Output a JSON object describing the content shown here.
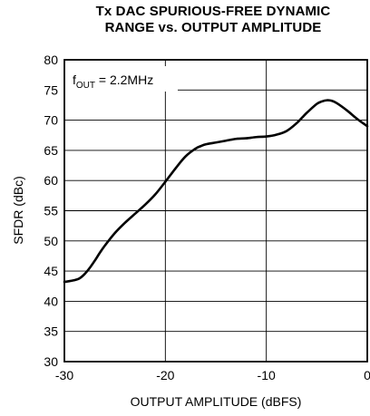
{
  "chart_data": {
    "type": "line",
    "title_line1": "Tx DAC SPURIOUS-FREE DYNAMIC",
    "title_line2": "RANGE vs. OUTPUT AMPLITUDE",
    "xlabel": "OUTPUT AMPLITUDE (dBFS)",
    "ylabel": "SFDR (dBc)",
    "annotation": {
      "prefix": "f",
      "subscript": "OUT",
      "suffix": " = 2.2MHz"
    },
    "xlim": [
      -30,
      0
    ],
    "ylim": [
      30,
      80
    ],
    "x_ticks": [
      -30,
      -20,
      -10,
      0
    ],
    "y_ticks": [
      30,
      35,
      40,
      45,
      50,
      55,
      60,
      65,
      70,
      75,
      80
    ],
    "grid": true,
    "series": [
      {
        "x": [
          -30,
          -29,
          -28.5,
          -28,
          -27.5,
          -27,
          -26.5,
          -26,
          -25,
          -24,
          -23,
          -22,
          -21,
          -20,
          -19,
          -18,
          -17,
          -16.5,
          -16,
          -15,
          -14,
          -13,
          -12,
          -11,
          -10,
          -9,
          -8,
          -7,
          -6,
          -5,
          -4.5,
          -4,
          -3.5,
          -3,
          -2,
          -1,
          0
        ],
        "y": [
          43.2,
          43.5,
          43.8,
          44.5,
          45.5,
          46.7,
          48,
          49.2,
          51.3,
          53,
          54.5,
          56,
          57.7,
          59.8,
          62,
          64,
          65.3,
          65.7,
          66,
          66.3,
          66.6,
          66.9,
          67,
          67.2,
          67.3,
          67.6,
          68.2,
          69.5,
          71.2,
          72.7,
          73.1,
          73.3,
          73.2,
          72.8,
          71.6,
          70.2,
          69
        ]
      }
    ]
  }
}
